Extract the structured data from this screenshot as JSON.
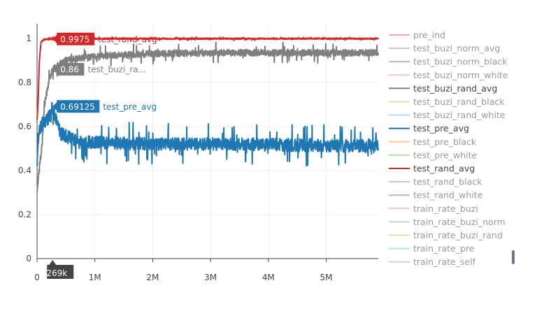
{
  "chart_data": {
    "type": "line",
    "xlim": [
      0,
      5900000
    ],
    "ylim": [
      0,
      1
    ],
    "x_ticks": [
      {
        "value": 0,
        "label": "0"
      },
      {
        "value": 1000000,
        "label": "1M"
      },
      {
        "value": 2000000,
        "label": "2M"
      },
      {
        "value": 3000000,
        "label": "3M"
      },
      {
        "value": 4000000,
        "label": "4M"
      },
      {
        "value": 5000000,
        "label": "5M"
      }
    ],
    "y_ticks": [
      {
        "value": 0,
        "label": "0"
      },
      {
        "value": 0.2,
        "label": "0.2"
      },
      {
        "value": 0.4,
        "label": "0.4"
      },
      {
        "value": 0.6,
        "label": "0.6"
      },
      {
        "value": 0.8,
        "label": "0.8"
      },
      {
        "value": 1,
        "label": "1"
      }
    ],
    "grid": true,
    "hover": {
      "x": 269000,
      "x_label": "269k",
      "labels": [
        {
          "series": "test_rand_avg",
          "value_label": "0.9975",
          "name_label": "test_rand_avg"
        },
        {
          "series": "test_buzi_rand_avg",
          "value_label": "0.86",
          "name_label": "test_buzi_ra..."
        },
        {
          "series": "test_pre_avg",
          "value_label": "0.69125",
          "name_label": "test_pre_avg"
        }
      ]
    },
    "series": [
      {
        "name": "test_rand_avg",
        "color": "#d62728",
        "visible": true,
        "points": [
          [
            0,
            0.63
          ],
          [
            20000,
            0.72
          ],
          [
            40000,
            0.9
          ],
          [
            70000,
            0.985
          ],
          [
            120000,
            0.995
          ],
          [
            269000,
            0.9975
          ],
          [
            600000,
            0.998
          ],
          [
            1500000,
            0.999
          ],
          [
            3000000,
            0.999
          ],
          [
            4500000,
            0.999
          ],
          [
            5900000,
            0.999
          ]
        ],
        "noise": 0.003
      },
      {
        "name": "test_buzi_rand_avg",
        "color": "#7f7f7f",
        "visible": true,
        "points": [
          [
            0,
            0.3
          ],
          [
            40000,
            0.42
          ],
          [
            80000,
            0.5
          ],
          [
            130000,
            0.7
          ],
          [
            200000,
            0.8
          ],
          [
            269000,
            0.86
          ],
          [
            500000,
            0.9
          ],
          [
            1000000,
            0.92
          ],
          [
            2000000,
            0.93
          ],
          [
            3000000,
            0.935
          ],
          [
            4000000,
            0.935
          ],
          [
            5000000,
            0.935
          ],
          [
            5900000,
            0.935
          ]
        ],
        "noise": 0.015
      },
      {
        "name": "test_pre_avg",
        "color": "#1f77b4",
        "visible": true,
        "points": [
          [
            0,
            0.42
          ],
          [
            20000,
            0.55
          ],
          [
            60000,
            0.6
          ],
          [
            120000,
            0.62
          ],
          [
            200000,
            0.64
          ],
          [
            269000,
            0.69125
          ],
          [
            400000,
            0.57
          ],
          [
            700000,
            0.53
          ],
          [
            1500000,
            0.525
          ],
          [
            2500000,
            0.52
          ],
          [
            3500000,
            0.52
          ],
          [
            4500000,
            0.515
          ],
          [
            5900000,
            0.51
          ]
        ],
        "noise": 0.03
      }
    ],
    "legend": {
      "placement": "right",
      "items": [
        {
          "name": "pre_ind",
          "color": "#ff9896",
          "visible": false
        },
        {
          "name": "test_buzi_norm_avg",
          "color": "#c5b0d5",
          "visible": false
        },
        {
          "name": "test_buzi_norm_black",
          "color": "#c49c94",
          "visible": false
        },
        {
          "name": "test_buzi_norm_white",
          "color": "#f7b6d2",
          "visible": false
        },
        {
          "name": "test_buzi_rand_avg",
          "color": "#7f7f7f",
          "visible": true
        },
        {
          "name": "test_buzi_rand_black",
          "color": "#dbdb8d",
          "visible": false
        },
        {
          "name": "test_buzi_rand_white",
          "color": "#9edae5",
          "visible": false
        },
        {
          "name": "test_pre_avg",
          "color": "#1f77b4",
          "visible": true
        },
        {
          "name": "test_pre_black",
          "color": "#ffbb78",
          "visible": false
        },
        {
          "name": "test_pre_white",
          "color": "#98df8a",
          "visible": false
        },
        {
          "name": "test_rand_avg",
          "color": "#d62728",
          "visible": true
        },
        {
          "name": "test_rand_black",
          "color": "#c5b0d5",
          "visible": false
        },
        {
          "name": "test_rand_white",
          "color": "#c49c94",
          "visible": false
        },
        {
          "name": "train_rate_buzi",
          "color": "#f7b6d2",
          "visible": false
        },
        {
          "name": "train_rate_buzi_norm",
          "color": "#c7c7c7",
          "visible": false
        },
        {
          "name": "train_rate_buzi_rand",
          "color": "#dbdb8d",
          "visible": false
        },
        {
          "name": "train_rate_pre",
          "color": "#9edae5",
          "visible": false
        },
        {
          "name": "train_rate_self",
          "color": "#aec7e8",
          "visible": false
        }
      ]
    },
    "colors": {
      "grid": "#eeeeee",
      "axis": "#444444",
      "legend_active_text": "#444444",
      "legend_inactive_text": "#9a9a9a",
      "scrollbar": "#6a7a90"
    }
  }
}
